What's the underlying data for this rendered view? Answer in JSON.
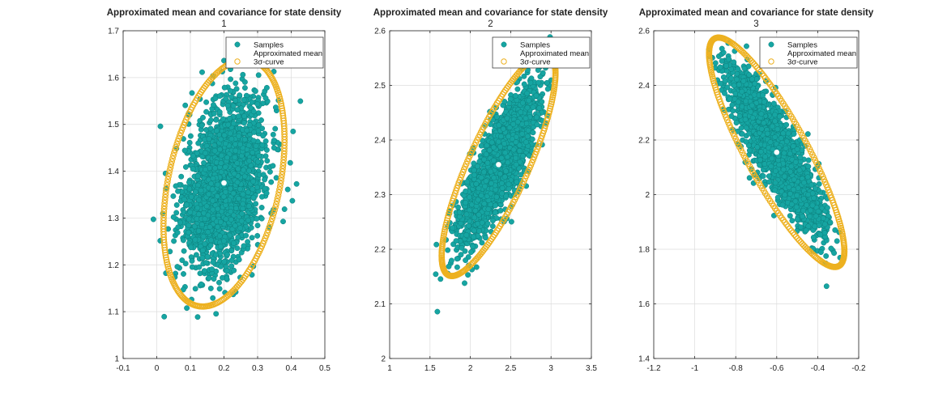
{
  "colors": {
    "samples": "#16a5a2",
    "samples_edge": "#0c7f7c",
    "mean": "#ffffff",
    "curve": "#edb120",
    "grid": "#dcdcdc",
    "axis": "#262626"
  },
  "legend_labels": {
    "samples": "Samples",
    "mean": "Approximated mean",
    "curve": "3σ-curve"
  },
  "chart_data": [
    {
      "type": "scatter",
      "title": "Approximated mean and covariance for state density",
      "subtitle": "1",
      "xlim": [
        -0.1,
        0.5
      ],
      "ylim": [
        1.0,
        1.7
      ],
      "xticks": [
        -0.1,
        0,
        0.1,
        0.2,
        0.3,
        0.4,
        0.5
      ],
      "yticks": [
        1,
        1.1,
        1.2,
        1.3,
        1.4,
        1.5,
        1.6,
        1.7
      ],
      "xtick_labels": [
        "-0.1",
        "0",
        "0.1",
        "0.2",
        "0.3",
        "0.4",
        "0.5"
      ],
      "ytick_labels": [
        "1",
        "1.1",
        "1.2",
        "1.3",
        "1.4",
        "1.5",
        "1.6",
        "1.7"
      ],
      "grid": true,
      "legend": "top-right",
      "mean": [
        0.2,
        1.375
      ],
      "std": [
        0.06,
        0.088
      ],
      "correlation": 0.35,
      "series": [
        {
          "name": "Samples",
          "kind": "samples"
        },
        {
          "name": "Approximated mean",
          "kind": "mean"
        },
        {
          "name": "3σ-curve",
          "kind": "curve"
        }
      ]
    },
    {
      "type": "scatter",
      "title": "Approximated mean and covariance for state density",
      "subtitle": "2",
      "xlim": [
        1,
        3.5
      ],
      "ylim": [
        2.0,
        2.6
      ],
      "xticks": [
        1,
        1.5,
        2,
        2.5,
        3,
        3.5
      ],
      "yticks": [
        2,
        2.1,
        2.2,
        2.3,
        2.4,
        2.5,
        2.6
      ],
      "xtick_labels": [
        "1",
        "1.5",
        "2",
        "2.5",
        "3",
        "3.5"
      ],
      "ytick_labels": [
        "2",
        "2.1",
        "2.2",
        "2.3",
        "2.4",
        "2.5",
        "2.6"
      ],
      "grid": true,
      "legend": "top-right",
      "mean": [
        2.35,
        2.355
      ],
      "std": [
        0.235,
        0.068
      ],
      "correlation": 0.82,
      "series": [
        {
          "name": "Samples",
          "kind": "samples"
        },
        {
          "name": "Approximated mean",
          "kind": "mean"
        },
        {
          "name": "3σ-curve",
          "kind": "curve"
        }
      ]
    },
    {
      "type": "scatter",
      "title": "Approximated mean and covariance for state density",
      "subtitle": "3",
      "xlim": [
        -1.2,
        -0.2
      ],
      "ylim": [
        1.4,
        2.6
      ],
      "xticks": [
        -1.2,
        -1,
        -0.8,
        -0.6,
        -0.4,
        -0.2
      ],
      "yticks": [
        1.4,
        1.6,
        1.8,
        2,
        2.2,
        2.4,
        2.6
      ],
      "xtick_labels": [
        "-1.2",
        "-1",
        "-0.8",
        "-0.6",
        "-0.4",
        "-0.2"
      ],
      "ytick_labels": [
        "1.4",
        "1.6",
        "1.8",
        "2",
        "2.2",
        "2.4",
        "2.6"
      ],
      "grid": true,
      "legend": "top-right",
      "mean": [
        -0.6,
        2.155
      ],
      "std": [
        0.11,
        0.14
      ],
      "correlation": -0.86,
      "series": [
        {
          "name": "Samples",
          "kind": "samples"
        },
        {
          "name": "Approximated mean",
          "kind": "mean"
        },
        {
          "name": "3σ-curve",
          "kind": "curve"
        }
      ]
    }
  ]
}
